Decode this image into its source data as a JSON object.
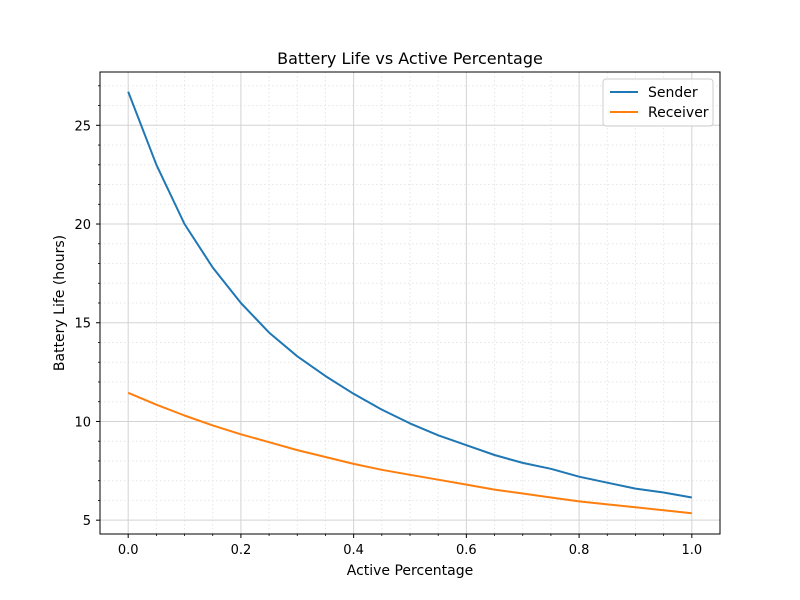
{
  "chart_data": {
    "type": "line",
    "title": "Battery Life vs Active Percentage",
    "xlabel": "Active Percentage",
    "ylabel": "Battery Life (hours)",
    "xlim": [
      -0.05,
      1.05
    ],
    "ylim": [
      4.3,
      27.7
    ],
    "xticks": [
      0.0,
      0.2,
      0.4,
      0.6,
      0.8,
      1.0
    ],
    "xtick_labels": [
      "0.0",
      "0.2",
      "0.4",
      "0.6",
      "0.8",
      "1.0"
    ],
    "yticks": [
      5,
      10,
      15,
      20,
      25
    ],
    "ytick_labels": [
      "5",
      "10",
      "15",
      "20",
      "25"
    ],
    "grid": "major solid, minor dotted",
    "legend_position": "top-right",
    "series": [
      {
        "name": "Sender",
        "color": "#1f77b4",
        "x": [
          0.0,
          0.05,
          0.1,
          0.15,
          0.2,
          0.25,
          0.3,
          0.35,
          0.4,
          0.45,
          0.5,
          0.55,
          0.6,
          0.65,
          0.7,
          0.75,
          0.8,
          0.85,
          0.9,
          0.95,
          1.0
        ],
        "y": [
          26.7,
          23.0,
          20.0,
          17.8,
          16.0,
          14.5,
          13.3,
          12.3,
          11.4,
          10.6,
          9.9,
          9.3,
          8.8,
          8.3,
          7.9,
          7.6,
          7.2,
          6.9,
          6.6,
          6.4,
          6.15
        ]
      },
      {
        "name": "Receiver",
        "color": "#ff7f0e",
        "x": [
          0.0,
          0.05,
          0.1,
          0.15,
          0.2,
          0.25,
          0.3,
          0.35,
          0.4,
          0.45,
          0.5,
          0.55,
          0.6,
          0.65,
          0.7,
          0.75,
          0.8,
          0.85,
          0.9,
          0.95,
          1.0
        ],
        "y": [
          11.45,
          10.85,
          10.3,
          9.8,
          9.35,
          8.95,
          8.55,
          8.2,
          7.85,
          7.55,
          7.3,
          7.05,
          6.8,
          6.55,
          6.35,
          6.15,
          5.95,
          5.8,
          5.65,
          5.5,
          5.35
        ]
      }
    ]
  }
}
